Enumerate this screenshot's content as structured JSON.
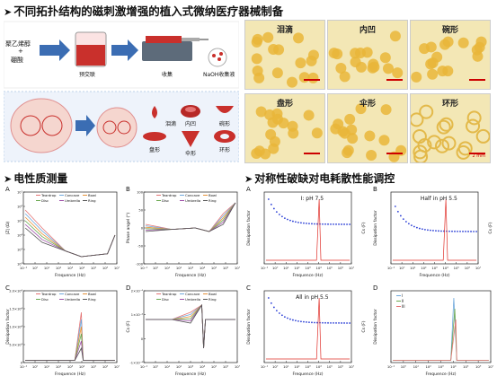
{
  "section_titles": {
    "main": "不同拓扑结构的磁刺激增强的植入式微纳医疗器械制备",
    "electric": "电性质测量",
    "symmetry": "对称性破缺对电耗散性能调控"
  },
  "fabrication": {
    "material_1": "聚乙烯醇",
    "plus": "+",
    "material_2": "硼酸",
    "step_precrosslink": "预交联",
    "step_collect": "收集",
    "step_naoh": "NaOH收集液"
  },
  "shapes": {
    "teardrop": "泪滴",
    "concave": "内凹",
    "bowl": "碗形",
    "disc": "盘形",
    "umbrella": "伞形",
    "ring": "环形"
  },
  "photos": [
    "泪滴",
    "内凹",
    "碗形",
    "盘形",
    "伞形",
    "环形"
  ],
  "scale_bar": "2 mm",
  "legend_items": [
    "Teardrop",
    "Concave",
    "Bowl",
    "Disc",
    "Umbrella",
    "Ring"
  ],
  "legend_b": [
    "I",
    "II",
    "III"
  ],
  "colors": {
    "teardrop": "#e57373",
    "concave": "#6fa8dc",
    "bowl": "#e69138",
    "disc": "#6aa84f",
    "umbrella": "#9e4fa8",
    "ring": "#555555",
    "blue": "#2b3fd6",
    "red": "#e0302a",
    "arrow": "#3b6db3",
    "photo_bg": "#f3e7b5"
  },
  "chart_data": [
    {
      "panel": "A",
      "type": "line",
      "xlabel": "Frequence (Hz)",
      "ylabel": "|Z| (Ω)",
      "x_ticks": [
        "10⁻¹",
        "10⁰",
        "10¹",
        "10²",
        "10³",
        "10⁴",
        "10⁵",
        "10⁶",
        "10⁷"
      ],
      "y_ticks": [
        "10²",
        "10³",
        "10⁴",
        "10⁵",
        "10⁶",
        "10⁷"
      ],
      "series_names": [
        "Teardrop",
        "Concave",
        "Bowl",
        "Disc",
        "Umbrella",
        "Ring"
      ]
    },
    {
      "panel": "B",
      "type": "line",
      "xlabel": "Frequence (Hz)",
      "ylabel": "Phase angel (°)",
      "x_ticks": [
        "10⁻¹",
        "10⁰",
        "10¹",
        "10²",
        "10³",
        "10⁴",
        "10⁵",
        "10⁶",
        "10⁷"
      ],
      "y_ticks": [
        "-100",
        "-50",
        "0",
        "50",
        "100"
      ],
      "series_names": [
        "Teardrop",
        "Concave",
        "Bowl",
        "Disc",
        "Umbrella",
        "Ring"
      ]
    },
    {
      "panel": "C",
      "type": "line",
      "xlabel": "Frequence (Hz)",
      "ylabel": "Dissipation factor",
      "x_ticks": [
        "10⁻¹",
        "10⁰",
        "10¹",
        "10²",
        "10³",
        "10⁴",
        "10⁵",
        "10⁶",
        "10⁷"
      ],
      "y_ticks": [
        "0",
        "5.0×10³",
        "1.0×10⁴",
        "1.5×10⁴",
        "2.0×10⁴"
      ],
      "series_names": [
        "Teardrop",
        "Concave",
        "Bowl",
        "Disc",
        "Umbrella",
        "Ring"
      ]
    },
    {
      "panel": "D",
      "type": "line",
      "xlabel": "Frequence (Hz)",
      "ylabel": "Cs (F)",
      "x_ticks": [
        "10⁻¹",
        "10⁰",
        "10¹",
        "10²",
        "10³",
        "10⁴",
        "10⁵",
        "10⁶",
        "10⁷"
      ],
      "y_ticks": [
        "-1×10⁻⁴",
        "0",
        "1×10⁻⁴",
        "2×10⁻⁴"
      ],
      "series_names": [
        "Teardrop",
        "Concave",
        "Bowl",
        "Disc",
        "Umbrella",
        "Ring"
      ]
    },
    {
      "panel": "A",
      "type": "line",
      "annotation": "I: pH 7.5",
      "xlabel": "Frequence (Hz)",
      "ylabel": "Dissipation factor",
      "y2label": "Cs (F)",
      "x_ticks": [
        "10⁻¹",
        "10⁰",
        "10¹",
        "10²",
        "10³",
        "10⁴",
        "10⁵",
        "10⁶",
        "10⁷"
      ]
    },
    {
      "panel": "B",
      "type": "line",
      "annotation": "Half in pH 5.5",
      "xlabel": "Frequence (Hz)",
      "ylabel": "Dissipation factor",
      "y2label": "Cs (F)",
      "x_ticks": [
        "10⁻¹",
        "10⁰",
        "10¹",
        "10²",
        "10³",
        "10⁴",
        "10⁵",
        "10⁶",
        "10⁷"
      ]
    },
    {
      "panel": "C",
      "type": "line",
      "annotation": "All in pH 5.5",
      "xlabel": "Frequence (Hz)",
      "ylabel": "Dissipation factor",
      "y2label": "Cs (F)",
      "x_ticks": [
        "10⁻¹",
        "10⁰",
        "10¹",
        "10²",
        "10³",
        "10⁴",
        "10⁵",
        "10⁶",
        "10⁷"
      ]
    },
    {
      "panel": "D",
      "type": "line",
      "xlabel": "Frequence (Hz)",
      "ylabel": "Dissipation factor",
      "x_ticks": [
        "10⁻¹",
        "10⁰",
        "10¹",
        "10²",
        "10³",
        "10⁴",
        "10⁵",
        "10⁶",
        "10⁷"
      ],
      "series_names": [
        "I",
        "II",
        "III"
      ]
    }
  ]
}
